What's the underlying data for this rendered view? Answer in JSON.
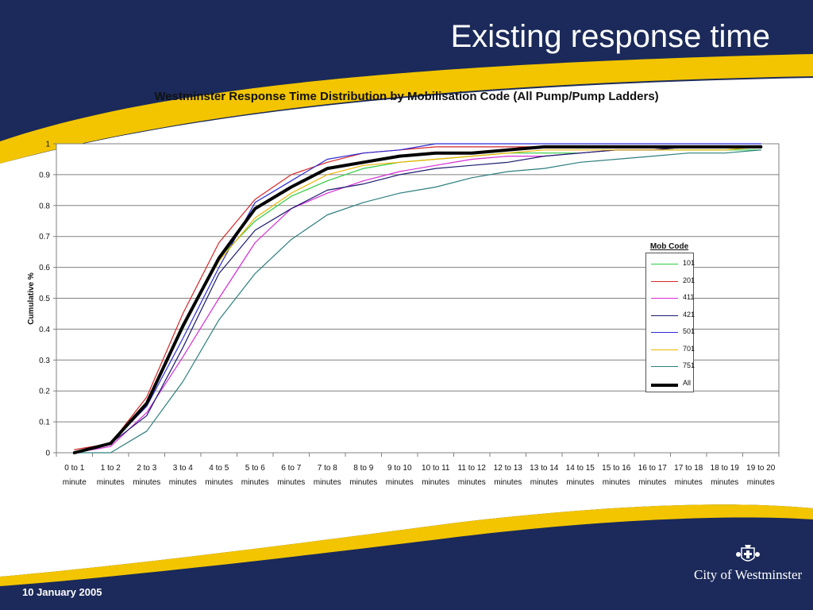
{
  "slide": {
    "title": "Existing response time",
    "date": "10 January 2005",
    "brand": "City of Westminster",
    "colors": {
      "navy": "#1b2a5a",
      "gold": "#f2c500",
      "white": "#ffffff"
    }
  },
  "chart_data": {
    "type": "line",
    "title": "Westminster Response Time Distribution by Mobilisation Code (All Pump/Pump Ladders)",
    "ylabel": "Cumulative %",
    "xlabel": "",
    "ylim": [
      0,
      1
    ],
    "yticks": [
      "0",
      "0.1",
      "0.2",
      "0.3",
      "0.4",
      "0.5",
      "0.6",
      "0.7",
      "0.8",
      "0.9",
      "1"
    ],
    "grid": true,
    "legend_title": "Mob Code",
    "legend_position": "right",
    "categories": [
      [
        "0 to 1",
        "minute"
      ],
      [
        "1 to 2",
        "minutes"
      ],
      [
        "2 to 3",
        "minutes"
      ],
      [
        "3 to 4",
        "minutes"
      ],
      [
        "4 to 5",
        "minutes"
      ],
      [
        "5 to 6",
        "minutes"
      ],
      [
        "6 to 7",
        "minutes"
      ],
      [
        "7 to 8",
        "minutes"
      ],
      [
        "8 to 9",
        "minutes"
      ],
      [
        "9 to 10",
        "minutes"
      ],
      [
        "10 to 11",
        "minutes"
      ],
      [
        "11 to 12",
        "minutes"
      ],
      [
        "12 to 13",
        "minutes"
      ],
      [
        "13 to 14",
        "minutes"
      ],
      [
        "14 to 15",
        "minutes"
      ],
      [
        "15 to 16",
        "minutes"
      ],
      [
        "16 to 17",
        "minutes"
      ],
      [
        "17 to 18",
        "minutes"
      ],
      [
        "18 to 19",
        "minutes"
      ],
      [
        "19 to 20",
        "minutes"
      ]
    ],
    "series": [
      {
        "name": "101",
        "color": "#2ecc40",
        "width": 1.2,
        "values": [
          0.0,
          0.03,
          0.16,
          0.4,
          0.63,
          0.75,
          0.83,
          0.88,
          0.92,
          0.94,
          0.95,
          0.96,
          0.97,
          0.97,
          0.97,
          0.98,
          0.98,
          0.98,
          0.98,
          0.98
        ]
      },
      {
        "name": "201",
        "color": "#d62728",
        "width": 1.2,
        "values": [
          0.01,
          0.03,
          0.18,
          0.45,
          0.68,
          0.82,
          0.9,
          0.94,
          0.97,
          0.98,
          0.99,
          0.99,
          0.99,
          0.99,
          0.99,
          0.99,
          0.99,
          0.99,
          0.99,
          0.99
        ]
      },
      {
        "name": "411",
        "color": "#d62ad6",
        "width": 1.2,
        "values": [
          0.0,
          0.02,
          0.13,
          0.31,
          0.5,
          0.68,
          0.79,
          0.84,
          0.88,
          0.91,
          0.93,
          0.95,
          0.96,
          0.96,
          0.97,
          0.98,
          0.98,
          0.99,
          0.99,
          0.99
        ]
      },
      {
        "name": "421",
        "color": "#1a1a6e",
        "width": 1.2,
        "values": [
          0.0,
          0.03,
          0.12,
          0.34,
          0.58,
          0.72,
          0.79,
          0.85,
          0.87,
          0.9,
          0.92,
          0.93,
          0.94,
          0.96,
          0.97,
          0.98,
          0.98,
          0.99,
          0.99,
          0.99
        ]
      },
      {
        "name": "501",
        "color": "#2a2ad6",
        "width": 1.2,
        "values": [
          0.0,
          0.03,
          0.15,
          0.37,
          0.6,
          0.81,
          0.88,
          0.95,
          0.97,
          0.98,
          1.0,
          1.0,
          1.0,
          1.0,
          1.0,
          1.0,
          1.0,
          1.0,
          1.0,
          1.0
        ]
      },
      {
        "name": "701",
        "color": "#f0b400",
        "width": 1.2,
        "values": [
          0.0,
          0.03,
          0.16,
          0.41,
          0.62,
          0.76,
          0.84,
          0.9,
          0.93,
          0.94,
          0.95,
          0.96,
          0.97,
          0.98,
          0.98,
          0.98,
          0.98,
          0.98,
          0.98,
          0.99
        ]
      },
      {
        "name": "751",
        "color": "#2e7d7d",
        "width": 1.2,
        "values": [
          0.0,
          0.0,
          0.07,
          0.23,
          0.43,
          0.58,
          0.69,
          0.77,
          0.81,
          0.84,
          0.86,
          0.89,
          0.91,
          0.92,
          0.94,
          0.95,
          0.96,
          0.97,
          0.97,
          0.98
        ]
      },
      {
        "name": "All",
        "color": "#000000",
        "width": 4,
        "values": [
          0.0,
          0.03,
          0.16,
          0.41,
          0.63,
          0.79,
          0.86,
          0.92,
          0.94,
          0.96,
          0.97,
          0.97,
          0.98,
          0.99,
          0.99,
          0.99,
          0.99,
          0.99,
          0.99,
          0.99
        ]
      }
    ]
  }
}
